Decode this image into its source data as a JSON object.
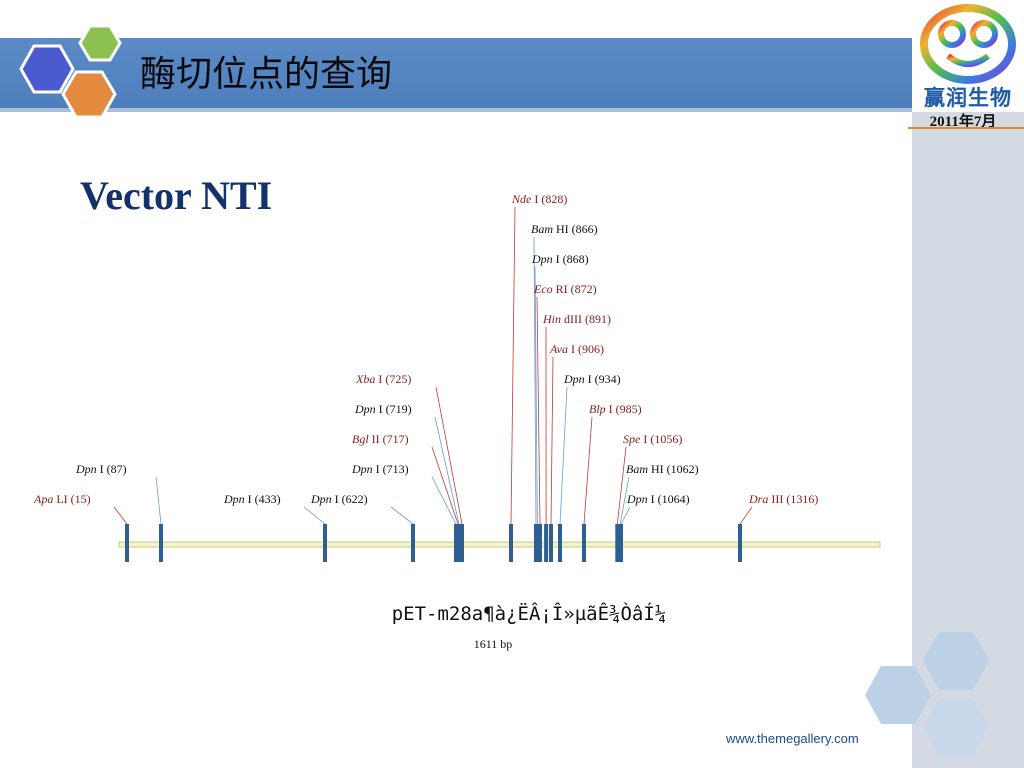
{
  "header": {
    "title": "酶切位点的查询",
    "brand": "赢润生物",
    "date": "2011年7月"
  },
  "slide_heading": "Vector NTI",
  "plasmid": {
    "name": "pET-m28a¶à¿ËÂ¡Î»µãÊ¾ÒâÍ¼",
    "size_label": "1611 bp",
    "length_bp": 1611,
    "sites": [
      {
        "enzyme": "Apa",
        "suffix": "LI",
        "pos": 15,
        "unique": true
      },
      {
        "enzyme": "Dpn",
        "suffix": "I",
        "pos": 87,
        "unique": false
      },
      {
        "enzyme": "Dpn",
        "suffix": "I",
        "pos": 433,
        "unique": false
      },
      {
        "enzyme": "Dpn",
        "suffix": "I",
        "pos": 622,
        "unique": false
      },
      {
        "enzyme": "Dpn",
        "suffix": "I",
        "pos": 713,
        "unique": false
      },
      {
        "enzyme": "Bgl",
        "suffix": "II",
        "pos": 717,
        "unique": true
      },
      {
        "enzyme": "Dpn",
        "suffix": "I",
        "pos": 719,
        "unique": false
      },
      {
        "enzyme": "Xba",
        "suffix": "I",
        "pos": 725,
        "unique": true
      },
      {
        "enzyme": "Nde",
        "suffix": "I",
        "pos": 828,
        "unique": true
      },
      {
        "enzyme": "Bam",
        "suffix": "HI",
        "pos": 866,
        "unique": false
      },
      {
        "enzyme": "Dpn",
        "suffix": "I",
        "pos": 868,
        "unique": false
      },
      {
        "enzyme": "Eco",
        "suffix": "RI",
        "pos": 872,
        "unique": true
      },
      {
        "enzyme": "Hin",
        "suffix": "dIII",
        "pos": 891,
        "unique": true
      },
      {
        "enzyme": "Ava",
        "suffix": "I",
        "pos": 906,
        "unique": true
      },
      {
        "enzyme": "Dpn",
        "suffix": "I",
        "pos": 934,
        "unique": false
      },
      {
        "enzyme": "Blp",
        "suffix": "I",
        "pos": 985,
        "unique": true
      },
      {
        "enzyme": "Spe",
        "suffix": "I",
        "pos": 1056,
        "unique": true
      },
      {
        "enzyme": "Bam",
        "suffix": "HI",
        "pos": 1062,
        "unique": false
      },
      {
        "enzyme": "Dpn",
        "suffix": "I",
        "pos": 1064,
        "unique": false
      },
      {
        "enzyme": "Dra",
        "suffix": "III",
        "pos": 1316,
        "unique": true
      }
    ]
  },
  "colors": {
    "unique_site": "#8b1a1a",
    "multi_site": "#111111",
    "tick": "#2d5f95",
    "backbone_fill": "#f7f4c6",
    "backbone_stroke": "#c9c98a"
  },
  "footer": {
    "url": "www.themegallery.com"
  }
}
